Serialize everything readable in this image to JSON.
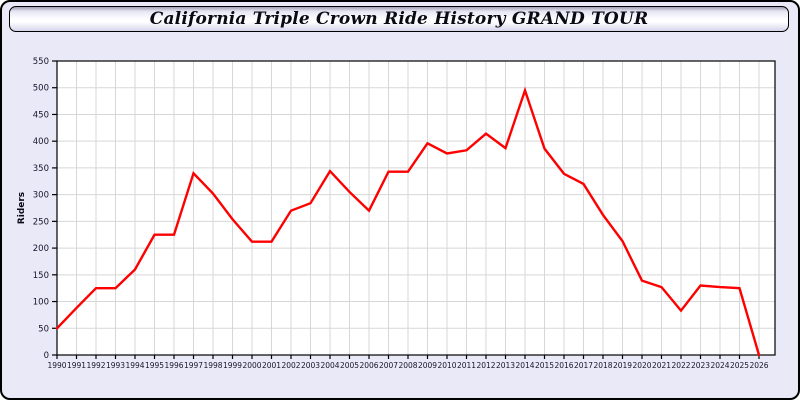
{
  "header": {
    "title": "California Triple Crown Ride History GRAND TOUR"
  },
  "chart_data": {
    "type": "line",
    "title": "California Triple Crown Ride History GRAND TOUR",
    "xlabel": "",
    "ylabel": "Riders",
    "x": [
      1990,
      1991,
      1992,
      1993,
      1994,
      1995,
      1996,
      1997,
      1998,
      1999,
      2000,
      2001,
      2002,
      2003,
      2004,
      2005,
      2006,
      2007,
      2008,
      2009,
      2010,
      2011,
      2012,
      2013,
      2014,
      2015,
      2016,
      2017,
      2018,
      2019,
      2020,
      2021,
      2022,
      2023,
      2024,
      2025,
      2026
    ],
    "series": [
      {
        "name": "Riders",
        "values": [
          50,
          88,
          125,
          125,
          160,
          225,
          225,
          340,
          302,
          254,
          212,
          212,
          270,
          284,
          344,
          305,
          270,
          343,
          343,
          396,
          377,
          383,
          414,
          387,
          495,
          386,
          339,
          320,
          262,
          213,
          139,
          127,
          83,
          130,
          127,
          125,
          0
        ]
      }
    ],
    "ylim": [
      0,
      550
    ],
    "ytick_step": 50,
    "grid": true,
    "legend_position": "none",
    "colors": {
      "line": "#ff0000",
      "plot_background": "#ffffff",
      "page_background": "#e9e9f8",
      "grid": "#d7d7d7",
      "axis": "#000000",
      "tick_text": "#15152a"
    }
  }
}
